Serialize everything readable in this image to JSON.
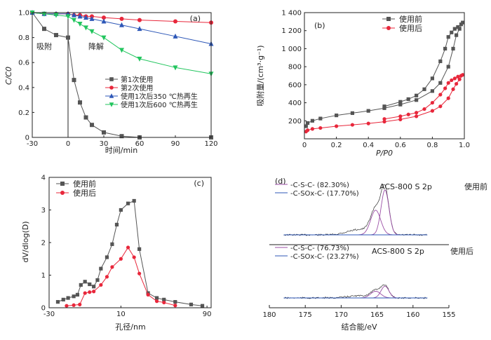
{
  "panels": {
    "a": {
      "tag": "(a)",
      "xlabel": "时间/min",
      "ylabel": "C/C0",
      "xticks": [
        "-30",
        "0",
        "30",
        "60",
        "90",
        "120"
      ],
      "yticks": [
        "0",
        "0.2",
        "0.4",
        "0.6",
        "0.8",
        "1.0"
      ],
      "regions": {
        "adsorption": "吸附",
        "degradation": "降解"
      }
    },
    "b": {
      "tag": "(b)",
      "xlabel": "P/P0",
      "ylabel": "吸附量/(cm³·g⁻¹)",
      "xticks": [
        "0",
        "0.2",
        "0.4",
        "0.6",
        "0.8",
        "1.0"
      ],
      "yticks": [
        "200",
        "400",
        "600",
        "800",
        "1 000",
        "1 200",
        "1 400"
      ]
    },
    "c": {
      "tag": "(c)",
      "xlabel": "孔径/nm",
      "ylabel": "dV/dlog(D)",
      "xticks": [
        "-30",
        "10",
        "90"
      ],
      "yticks": [
        "0",
        "1",
        "2",
        "3",
        "4"
      ]
    },
    "d": {
      "tag": "(d)",
      "xlabel": "结合能/eV",
      "xticks": [
        "180",
        "175",
        "170",
        "165",
        "160",
        "155"
      ],
      "before": {
        "state": "使用前",
        "title": "ACS-800 S 2p",
        "legend": [
          "-C-S-C- (82.30%)",
          "-C-SOx-C- (17.70%)"
        ]
      },
      "after": {
        "state": "使用后",
        "title": "ACS-800 S 2p",
        "legend": [
          "-C-S-C- (76.73%)",
          "-C-SOx-C- (23.27%)"
        ]
      }
    }
  },
  "colors": {
    "gray": "#555555",
    "red": "#e8273b",
    "blue": "#2d57b7",
    "green": "#22c55e",
    "purple": "#9b4fa6"
  },
  "chart_data": [
    {
      "type": "line",
      "panel": "a",
      "xlabel": "时间/min",
      "ylabel": "C/C0",
      "xlim": [
        -30,
        120
      ],
      "ylim": [
        0,
        1.0
      ],
      "series": [
        {
          "name": "第1次使用",
          "color": "#555555",
          "marker": "square",
          "x": [
            -30,
            -20,
            -10,
            0,
            5,
            10,
            15,
            20,
            30,
            45,
            60,
            120
          ],
          "y": [
            1.0,
            0.87,
            0.82,
            0.8,
            0.46,
            0.28,
            0.16,
            0.1,
            0.04,
            0.01,
            0.0,
            0.0
          ]
        },
        {
          "name": "第2次使用",
          "color": "#e8273b",
          "marker": "circle",
          "x": [
            -30,
            -20,
            -10,
            0,
            5,
            10,
            15,
            20,
            30,
            45,
            60,
            90,
            120
          ],
          "y": [
            1.0,
            0.99,
            0.99,
            0.99,
            0.98,
            0.98,
            0.97,
            0.97,
            0.96,
            0.95,
            0.94,
            0.93,
            0.92
          ]
        },
        {
          "name": "使用1次后350 ℃热再生",
          "color": "#2d57b7",
          "marker": "triangle",
          "x": [
            -30,
            -20,
            -10,
            0,
            5,
            10,
            15,
            20,
            30,
            45,
            60,
            90,
            120
          ],
          "y": [
            1.0,
            0.99,
            0.99,
            0.99,
            0.98,
            0.97,
            0.96,
            0.95,
            0.93,
            0.9,
            0.87,
            0.81,
            0.75
          ]
        },
        {
          "name": "使用1次后600 ℃热再生",
          "color": "#22c55e",
          "marker": "triangle-down",
          "x": [
            -30,
            -20,
            -10,
            0,
            5,
            10,
            15,
            20,
            30,
            45,
            60,
            90,
            120
          ],
          "y": [
            1.0,
            0.99,
            0.98,
            0.97,
            0.94,
            0.91,
            0.88,
            0.85,
            0.8,
            0.7,
            0.63,
            0.56,
            0.51
          ]
        }
      ]
    },
    {
      "type": "line",
      "panel": "b",
      "xlabel": "P/P0",
      "ylabel": "吸附量/(cm³·g⁻¹)",
      "xlim": [
        0,
        1.0
      ],
      "ylim": [
        0,
        1400
      ],
      "legend_position": "top-right",
      "series": [
        {
          "name": "使用前",
          "color": "#555555",
          "marker": "square",
          "x": [
            0.01,
            0.02,
            0.05,
            0.1,
            0.2,
            0.3,
            0.4,
            0.5,
            0.6,
            0.7,
            0.8,
            0.85,
            0.9,
            0.93,
            0.95,
            0.97,
            0.99,
            0.98,
            0.96,
            0.94,
            0.92,
            0.9,
            0.88,
            0.85,
            0.8,
            0.75,
            0.7,
            0.65,
            0.6,
            0.5
          ],
          "y": [
            140,
            175,
            200,
            225,
            260,
            285,
            310,
            340,
            380,
            430,
            530,
            620,
            800,
            1000,
            1150,
            1220,
            1290,
            1270,
            1240,
            1220,
            1180,
            1130,
            1000,
            860,
            670,
            550,
            480,
            440,
            410,
            360
          ]
        },
        {
          "name": "使用后",
          "color": "#e8273b",
          "marker": "circle",
          "x": [
            0.01,
            0.02,
            0.05,
            0.1,
            0.2,
            0.3,
            0.4,
            0.5,
            0.6,
            0.7,
            0.8,
            0.85,
            0.9,
            0.93,
            0.95,
            0.97,
            0.99,
            0.98,
            0.96,
            0.94,
            0.92,
            0.9,
            0.88,
            0.85,
            0.8,
            0.75,
            0.7,
            0.65,
            0.6,
            0.5
          ],
          "y": [
            80,
            95,
            110,
            120,
            140,
            155,
            170,
            190,
            215,
            250,
            310,
            360,
            450,
            550,
            610,
            660,
            710,
            700,
            690,
            670,
            650,
            620,
            560,
            490,
            400,
            330,
            290,
            270,
            250,
            220
          ]
        }
      ]
    },
    {
      "type": "line",
      "panel": "c",
      "xlabel": "孔径/nm",
      "ylabel": "dV/dlog(D)",
      "ylim": [
        0,
        4
      ],
      "legend_position": "top-left",
      "series": [
        {
          "name": "使用前",
          "color": "#555555",
          "marker": "square",
          "x": [
            2.0,
            2.3,
            2.6,
            3.0,
            3.3,
            3.6,
            4.0,
            4.5,
            5.0,
            5.5,
            6.0,
            7.0,
            8.0,
            9.0,
            10,
            12,
            14,
            16,
            20,
            25,
            30,
            40,
            60,
            80
          ],
          "y": [
            0.18,
            0.25,
            0.3,
            0.35,
            0.4,
            0.7,
            0.8,
            0.72,
            0.65,
            0.85,
            1.2,
            1.55,
            1.95,
            2.55,
            3.0,
            3.2,
            3.28,
            1.8,
            0.45,
            0.3,
            0.25,
            0.18,
            0.1,
            0.06
          ]
        },
        {
          "name": "使用后",
          "color": "#e8273b",
          "marker": "circle",
          "x": [
            2.5,
            3.0,
            3.5,
            4.0,
            4.5,
            5.0,
            6.0,
            7.0,
            8.0,
            10,
            12,
            14,
            16,
            20,
            25,
            30,
            40
          ],
          "y": [
            0.06,
            0.08,
            0.1,
            0.45,
            0.48,
            0.5,
            0.7,
            0.95,
            1.25,
            1.5,
            1.85,
            1.55,
            1.05,
            0.4,
            0.2,
            0.16,
            0.07
          ]
        }
      ]
    },
    {
      "type": "line",
      "panel": "d",
      "xlabel": "结合能/eV",
      "xlim": [
        180,
        155
      ],
      "series": [
        {
          "name": "使用前",
          "peaks": [
            {
              "center": 165.2,
              "height": 0.55,
              "width": 0.7
            },
            {
              "center": 163.9,
              "height": 1.0,
              "width": 0.55
            },
            {
              "center": 167.5,
              "height": 0.12,
              "width": 1.6
            }
          ],
          "baseline": 0.0
        },
        {
          "name": "使用后",
          "peaks": [
            {
              "center": 165.2,
              "height": 0.16,
              "width": 0.7
            },
            {
              "center": 163.9,
              "height": 0.28,
              "width": 0.55
            },
            {
              "center": 167.5,
              "height": 0.05,
              "width": 1.6
            }
          ],
          "baseline": 0.0
        }
      ]
    }
  ]
}
